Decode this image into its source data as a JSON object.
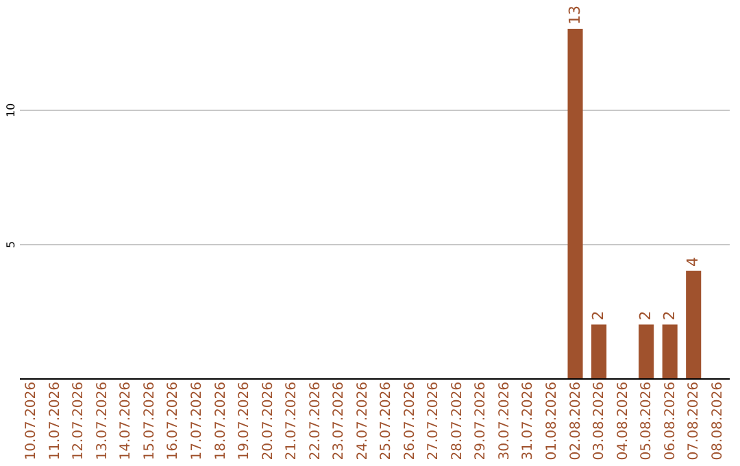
{
  "chart_data": {
    "type": "bar",
    "categories": [
      "10.07.2026",
      "11.07.2026",
      "12.07.2026",
      "13.07.2026",
      "14.07.2026",
      "15.07.2026",
      "16.07.2026",
      "17.07.2026",
      "18.07.2026",
      "19.07.2026",
      "20.07.2026",
      "21.07.2026",
      "22.07.2026",
      "23.07.2026",
      "24.07.2026",
      "25.07.2026",
      "26.07.2026",
      "27.07.2026",
      "28.07.2026",
      "29.07.2026",
      "30.07.2026",
      "31.07.2026",
      "01.08.2026",
      "02.08.2026",
      "03.08.2026",
      "04.08.2026",
      "05.08.2026",
      "06.08.2026",
      "07.08.2026",
      "08.08.2026"
    ],
    "values": [
      0,
      0,
      0,
      0,
      0,
      0,
      0,
      0,
      0,
      0,
      0,
      0,
      0,
      0,
      0,
      0,
      0,
      0,
      0,
      0,
      0,
      0,
      0,
      13,
      2,
      0,
      2,
      2,
      4,
      0
    ],
    "value_labels": [
      null,
      null,
      null,
      null,
      null,
      null,
      null,
      null,
      null,
      null,
      null,
      null,
      null,
      null,
      null,
      null,
      null,
      null,
      null,
      null,
      null,
      null,
      null,
      "13",
      "2",
      null,
      "2",
      "2",
      "4",
      null
    ],
    "color": "#a0522d",
    "ylim": [
      0,
      13
    ],
    "yticks": [
      5,
      10
    ],
    "grid": "y"
  }
}
